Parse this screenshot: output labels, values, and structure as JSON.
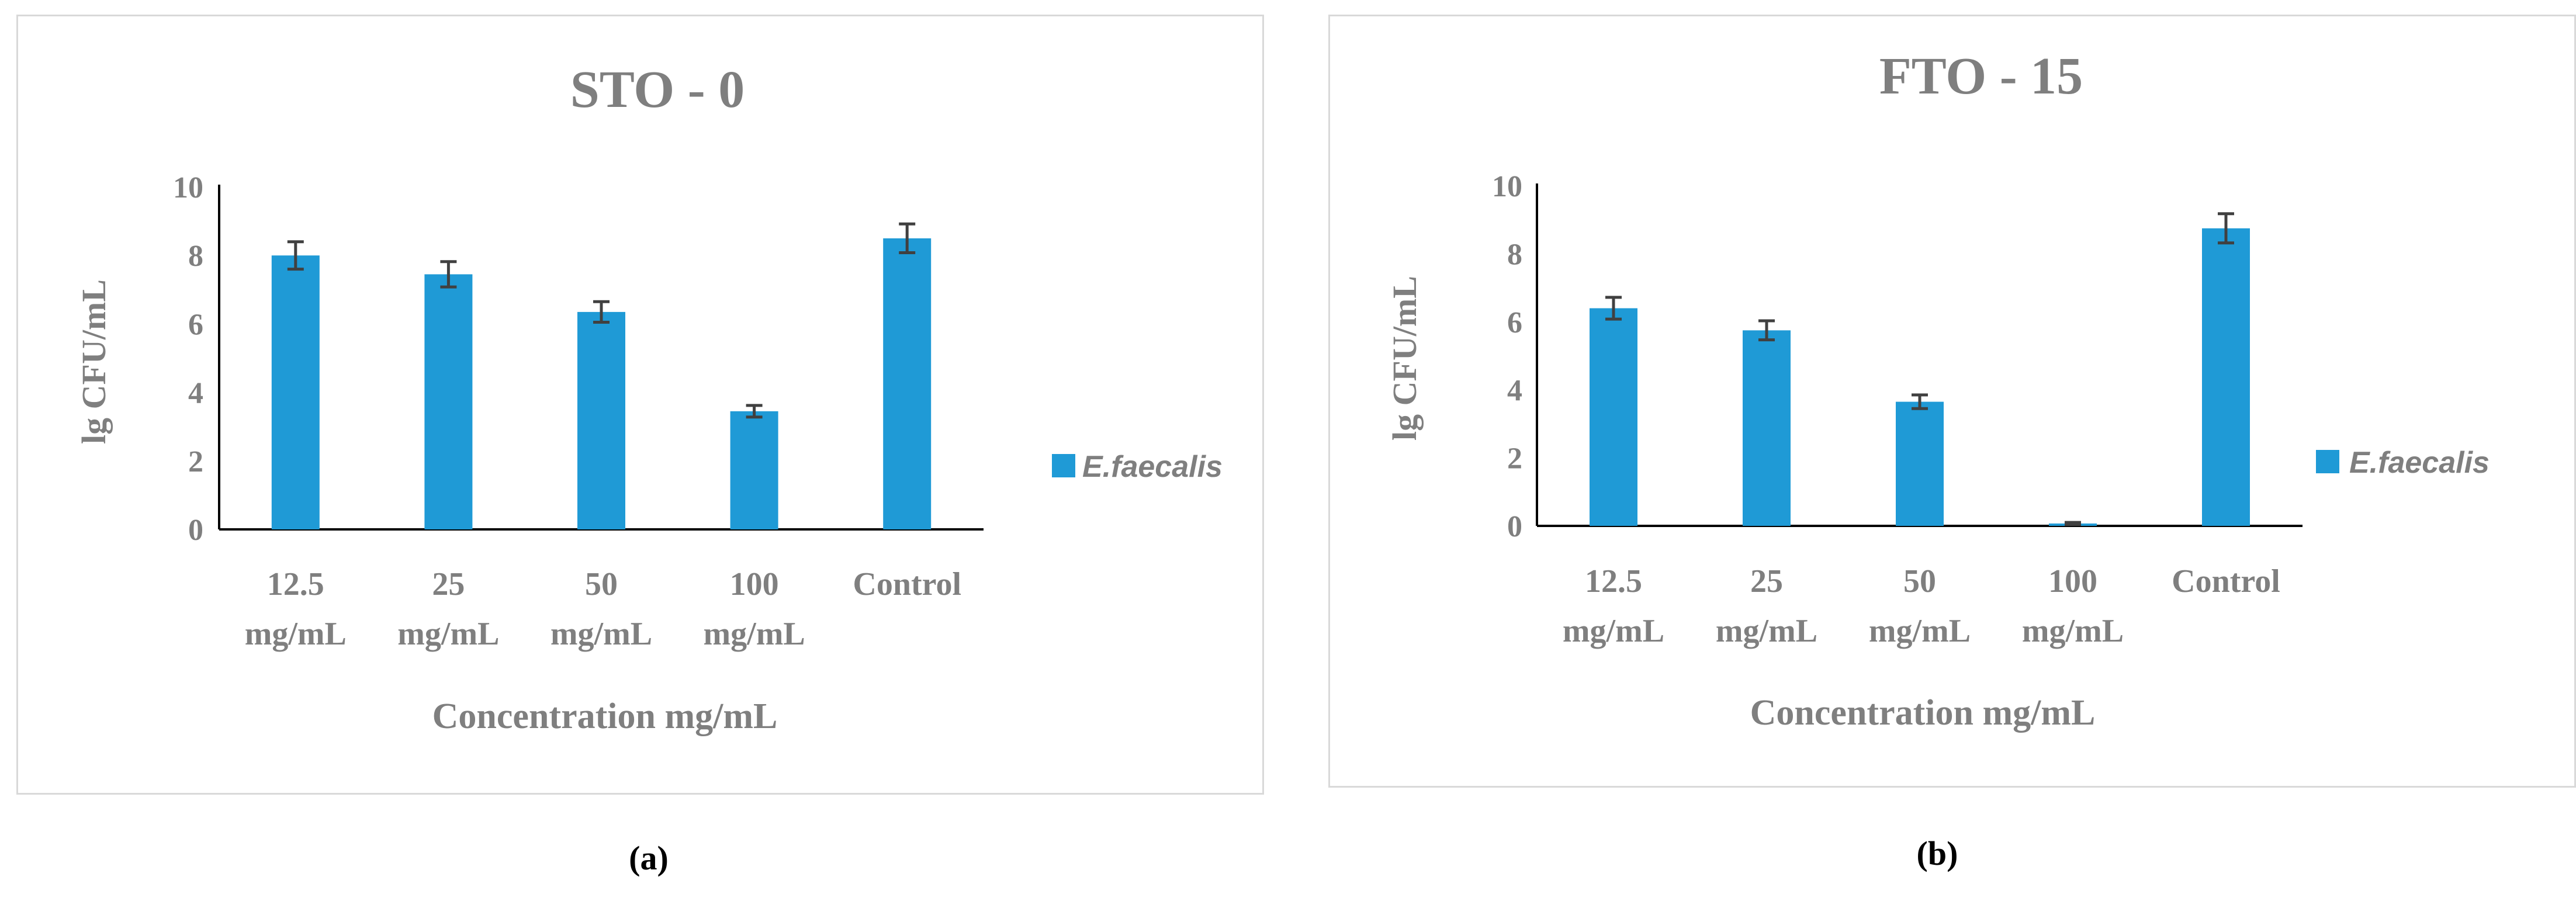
{
  "colors": {
    "bar": "#1f9ad6",
    "axis": "#000000",
    "text": "#7f7f7f",
    "error_bar": "#404040",
    "panel_border": "#d9d9d9"
  },
  "legend_icon": "square-swatch",
  "chart_data": [
    {
      "type": "bar",
      "title": "STO - 0",
      "xlabel": "Concentration mg/mL",
      "ylabel": "lg CFU/mL",
      "ylim": [
        0,
        10
      ],
      "yticks": [
        0,
        2,
        4,
        6,
        8,
        10
      ],
      "categories": [
        [
          "12.5",
          "mg/mL"
        ],
        [
          "25",
          "mg/mL"
        ],
        [
          "50",
          "mg/mL"
        ],
        [
          "100",
          "mg/mL"
        ],
        [
          "Control"
        ]
      ],
      "series": [
        {
          "name": "E.faecalis",
          "values": [
            8.0,
            7.45,
            6.35,
            3.45,
            8.5
          ],
          "errors": [
            0.4,
            0.37,
            0.3,
            0.17,
            0.42
          ]
        }
      ],
      "legend_position": "right",
      "caption": "(a)"
    },
    {
      "type": "bar",
      "title": "FTO - 15",
      "xlabel": "Concentration mg/mL",
      "ylabel": "lg CFU/mL",
      "ylim": [
        0,
        10
      ],
      "yticks": [
        0,
        2,
        4,
        6,
        8,
        10
      ],
      "categories": [
        [
          "12.5",
          "mg/mL"
        ],
        [
          "25",
          "mg/mL"
        ],
        [
          "50",
          "mg/mL"
        ],
        [
          "100",
          "mg/mL"
        ],
        [
          "Control"
        ]
      ],
      "series": [
        {
          "name": "E.faecalis",
          "values": [
            6.4,
            5.75,
            3.65,
            0.07,
            8.75
          ],
          "errors": [
            0.32,
            0.28,
            0.2,
            0.03,
            0.43
          ]
        }
      ],
      "legend_position": "right",
      "caption": "(b)"
    }
  ]
}
